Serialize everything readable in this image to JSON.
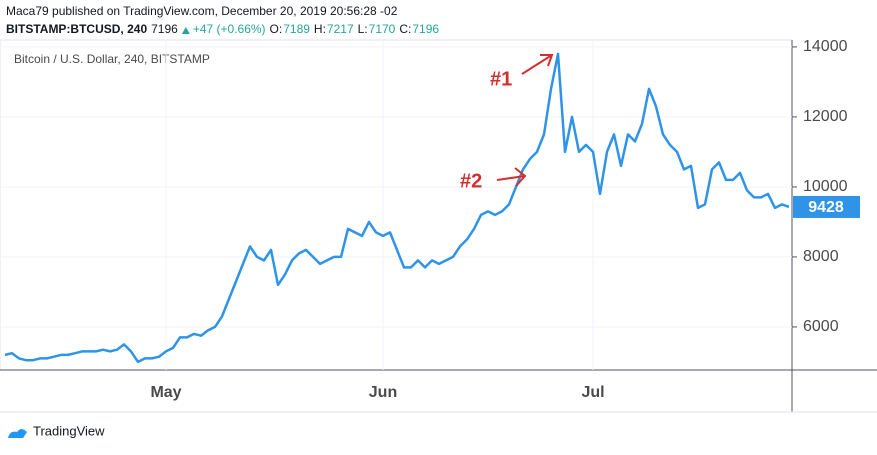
{
  "chart_data": {
    "type": "line",
    "header": {
      "published": "Maca79 published on TradingView.com, December 20, 2019 20:56:28 -02",
      "symbol": "BITSTAMP:BTCUSD, 240",
      "last": 7196,
      "change": "+47 (+0.66%)",
      "ohlc": [
        {
          "label": "O:",
          "value": 7189
        },
        {
          "label": "H:",
          "value": 7217
        },
        {
          "label": "L:",
          "value": 7170
        },
        {
          "label": "C:",
          "value": 7196
        }
      ]
    },
    "title": "Bitcoin / U.S. Dollar, 240, BITSTAMP",
    "annotations": [
      "#1",
      "#2"
    ],
    "footer": "TradingView",
    "categories": [
      null,
      null,
      null,
      null,
      null,
      null,
      null,
      null,
      null,
      null,
      null,
      null,
      null,
      null,
      null,
      null,
      null,
      null,
      null,
      null,
      null,
      null,
      null,
      "May",
      null,
      null,
      null,
      null,
      null,
      null,
      null,
      null,
      null,
      null,
      null,
      null,
      null,
      null,
      null,
      null,
      null,
      null,
      null,
      null,
      null,
      null,
      null,
      null,
      null,
      null,
      null,
      null,
      null,
      null,
      "Jun",
      null,
      null,
      null,
      null,
      null,
      null,
      null,
      null,
      null,
      null,
      null,
      null,
      null,
      null,
      null,
      null,
      null,
      null,
      null,
      null,
      null,
      null,
      null,
      null,
      null,
      null,
      null,
      null,
      null,
      "Jul",
      null,
      null,
      null,
      null,
      null,
      null,
      null,
      null,
      null,
      null,
      null,
      null,
      null,
      null,
      null,
      null,
      null,
      null,
      null,
      null,
      null,
      null,
      null,
      null,
      null,
      null,
      null,
      null
    ],
    "series": [
      {
        "name": "BTCUSD",
        "color": "#2f94e8",
        "values": [
          5200,
          5250,
          5100,
          5050,
          5050,
          5100,
          5100,
          5150,
          5200,
          5200,
          5250,
          5300,
          5300,
          5300,
          5350,
          5300,
          5350,
          5500,
          5300,
          5000,
          5100,
          5100,
          5150,
          5300,
          5400,
          5700,
          5700,
          5800,
          5750,
          5900,
          6000,
          6300,
          6800,
          7300,
          7800,
          8300,
          8000,
          7900,
          8200,
          7200,
          7500,
          7900,
          8100,
          8200,
          8000,
          7800,
          7900,
          8000,
          8000,
          8800,
          8700,
          8600,
          9000,
          8700,
          8600,
          8700,
          8200,
          7700,
          7700,
          7900,
          7700,
          7900,
          7800,
          7900,
          8000,
          8300,
          8500,
          8800,
          9200,
          9300,
          9200,
          9300,
          9500,
          10000,
          10500,
          10800,
          11000,
          11500,
          12800,
          13800,
          11000,
          12000,
          11000,
          11200,
          11000,
          9800,
          11000,
          11500,
          10600,
          11500,
          11300,
          11800,
          12800,
          12300,
          11500,
          11200,
          11000,
          10500,
          10600,
          9400,
          9500,
          10500,
          10700,
          10200,
          10200,
          10400,
          9900,
          9700,
          9700,
          9800,
          9400,
          9500,
          9428
        ]
      }
    ],
    "ylim": [
      4770,
      14340
    ],
    "yticks": [
      6000,
      8000,
      10000,
      12000,
      14000
    ],
    "grid": true
  }
}
